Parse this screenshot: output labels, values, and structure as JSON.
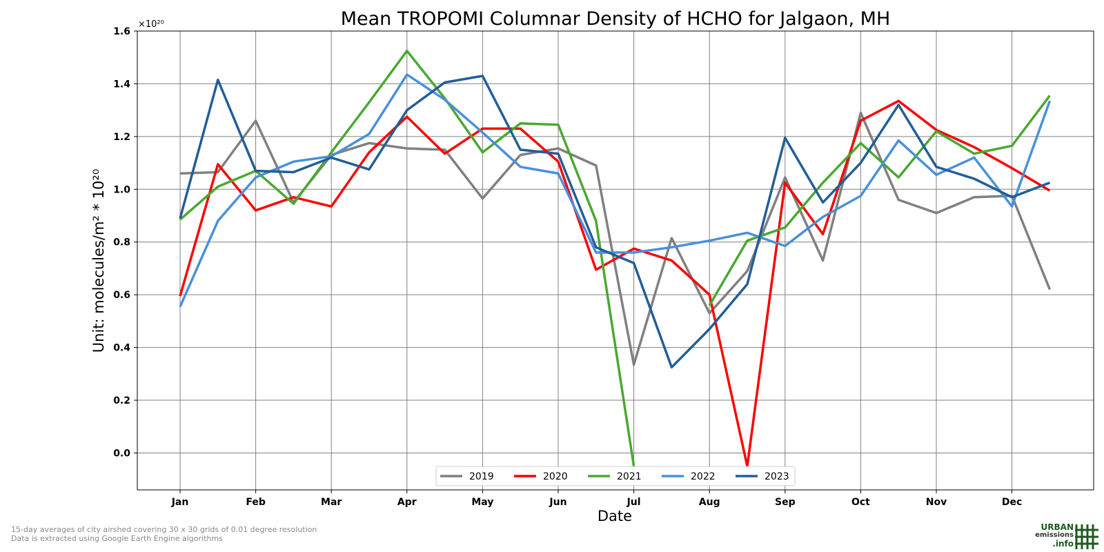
{
  "chart_data": {
    "type": "line",
    "title": "Mean TROPOMI Columnar Density of HCHO for Jalgaon, MH",
    "xlabel": "Date",
    "ylabel": "Unit: molecules/m² * 10²⁰",
    "y_multiplier": "×10²⁰",
    "ylim": [
      -0.14,
      1.6
    ],
    "y_ticks": [
      "0.0",
      "0.2",
      "0.4",
      "0.6",
      "0.8",
      "1.0",
      "1.2",
      "1.4",
      "1.6"
    ],
    "y_tick_values": [
      0.0,
      0.2,
      0.4,
      0.6,
      0.8,
      1.0,
      1.2,
      1.4,
      1.6
    ],
    "x_ticks": [
      "Jan",
      "Feb",
      "Mar",
      "Apr",
      "May",
      "Jun",
      "Jul",
      "Aug",
      "Sep",
      "Oct",
      "Nov",
      "Dec"
    ],
    "grid": true,
    "legend_position": "bottom-center",
    "series": [
      {
        "name": "2019",
        "color": "#808080",
        "values": [
          1.06,
          1.065,
          1.26,
          0.95,
          1.13,
          1.175,
          1.155,
          1.15,
          0.965,
          1.13,
          1.155,
          1.09,
          0.335,
          0.815,
          0.53,
          0.69,
          1.045,
          0.73,
          1.29,
          0.96,
          0.91,
          0.97,
          0.975,
          0.62
        ]
      },
      {
        "name": "2020",
        "color": "#ff0000",
        "values": [
          0.595,
          1.095,
          0.92,
          0.97,
          0.935,
          1.14,
          1.275,
          1.135,
          1.23,
          1.23,
          1.105,
          0.695,
          0.775,
          0.73,
          0.6,
          -0.05,
          1.025,
          0.83,
          1.26,
          1.335,
          1.225,
          1.16,
          1.08,
          0.995
        ]
      },
      {
        "name": "2021",
        "color": "#4aa832",
        "values": [
          0.885,
          1.01,
          1.07,
          0.945,
          1.14,
          1.33,
          1.525,
          1.345,
          1.14,
          1.25,
          1.245,
          0.88,
          -0.05,
          null,
          0.56,
          0.805,
          0.855,
          1.025,
          1.175,
          1.045,
          1.22,
          1.135,
          1.165,
          1.355
        ]
      },
      {
        "name": "2022",
        "color": "#4a90d9",
        "values": [
          0.555,
          0.88,
          1.045,
          1.105,
          1.125,
          1.21,
          1.435,
          1.34,
          1.215,
          1.085,
          1.06,
          0.76,
          0.76,
          0.78,
          0.805,
          0.835,
          0.785,
          0.895,
          0.975,
          1.185,
          1.055,
          1.12,
          0.935,
          1.335
        ]
      },
      {
        "name": "2023",
        "color": "#225e96",
        "values": [
          0.89,
          1.415,
          1.07,
          1.065,
          1.12,
          1.075,
          1.3,
          1.405,
          1.43,
          1.15,
          1.135,
          0.78,
          0.72,
          0.325,
          0.47,
          0.64,
          1.195,
          0.95,
          1.1,
          1.32,
          1.085,
          1.04,
          0.97,
          1.025
        ]
      }
    ]
  },
  "footnote": {
    "line1": "15-day averages of city airshed covering 30 x 30 grids of 0.01 degree resolution",
    "line2": "Data is extracted using Google Earth Engine algorithms"
  },
  "logo": {
    "line1": "URBAN",
    "line2": "emissions",
    "line3": ".info"
  }
}
